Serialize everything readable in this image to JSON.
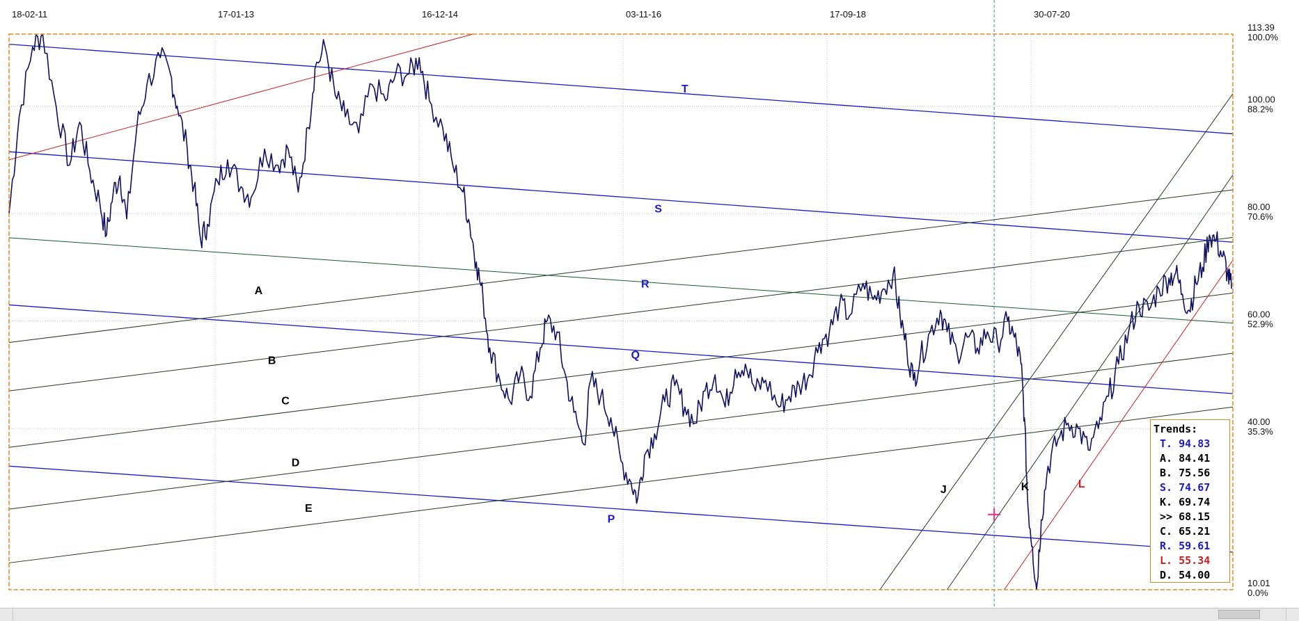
{
  "chart_data": {
    "type": "line",
    "dates": [
      "18-02-11",
      "17-01-13",
      "16-12-14",
      "03-11-16",
      "17-09-18",
      "30-07-20"
    ],
    "price_levels": [
      {
        "value": "113.39",
        "pct": "100.0%"
      },
      {
        "value": "100.00",
        "pct": "88.2%"
      },
      {
        "value": "80.00",
        "pct": "70.6%"
      },
      {
        "value": "60.00",
        "pct": "52.9%"
      },
      {
        "value": "40.00",
        "pct": "35.3%"
      },
      {
        "value": "10.01",
        "pct": "0.0%"
      }
    ],
    "ylim": [
      10.01,
      113.39
    ],
    "price_series": [
      {
        "x": 0,
        "y": 80
      },
      {
        "x": 0.15,
        "y": 98
      },
      {
        "x": 0.35,
        "y": 111
      },
      {
        "x": 0.5,
        "y": 113.39
      },
      {
        "x": 0.7,
        "y": 100
      },
      {
        "x": 0.9,
        "y": 89
      },
      {
        "x": 1.05,
        "y": 97
      },
      {
        "x": 1.2,
        "y": 88
      },
      {
        "x": 1.35,
        "y": 82
      },
      {
        "x": 1.45,
        "y": 76
      },
      {
        "x": 1.55,
        "y": 84
      },
      {
        "x": 1.65,
        "y": 87
      },
      {
        "x": 1.75,
        "y": 79
      },
      {
        "x": 1.9,
        "y": 96
      },
      {
        "x": 2.05,
        "y": 104
      },
      {
        "x": 2.25,
        "y": 109
      },
      {
        "x": 2.4,
        "y": 106
      },
      {
        "x": 2.5,
        "y": 100
      },
      {
        "x": 2.65,
        "y": 92
      },
      {
        "x": 2.75,
        "y": 85
      },
      {
        "x": 2.85,
        "y": 75
      },
      {
        "x": 2.95,
        "y": 78
      },
      {
        "x": 3.1,
        "y": 86
      },
      {
        "x": 3.25,
        "y": 90
      },
      {
        "x": 3.45,
        "y": 85
      },
      {
        "x": 3.6,
        "y": 83
      },
      {
        "x": 3.8,
        "y": 92
      },
      {
        "x": 4.0,
        "y": 89
      },
      {
        "x": 4.15,
        "y": 92
      },
      {
        "x": 4.3,
        "y": 84
      },
      {
        "x": 4.45,
        "y": 96
      },
      {
        "x": 4.55,
        "y": 107
      },
      {
        "x": 4.7,
        "y": 111
      },
      {
        "x": 4.85,
        "y": 102
      },
      {
        "x": 5.0,
        "y": 98
      },
      {
        "x": 5.2,
        "y": 95
      },
      {
        "x": 5.4,
        "y": 104
      },
      {
        "x": 5.6,
        "y": 101
      },
      {
        "x": 5.75,
        "y": 106
      },
      {
        "x": 5.95,
        "y": 106
      },
      {
        "x": 6.1,
        "y": 109
      },
      {
        "x": 6.25,
        "y": 101
      },
      {
        "x": 6.45,
        "y": 96
      },
      {
        "x": 6.6,
        "y": 89
      },
      {
        "x": 6.75,
        "y": 84
      },
      {
        "x": 6.85,
        "y": 78
      },
      {
        "x": 6.95,
        "y": 71
      },
      {
        "x": 7.05,
        "y": 64
      },
      {
        "x": 7.15,
        "y": 55
      },
      {
        "x": 7.3,
        "y": 49
      },
      {
        "x": 7.45,
        "y": 45
      },
      {
        "x": 7.6,
        "y": 50
      },
      {
        "x": 7.75,
        "y": 46
      },
      {
        "x": 7.9,
        "y": 55
      },
      {
        "x": 8.0,
        "y": 60
      },
      {
        "x": 8.15,
        "y": 58
      },
      {
        "x": 8.25,
        "y": 51
      },
      {
        "x": 8.4,
        "y": 43
      },
      {
        "x": 8.55,
        "y": 37
      },
      {
        "x": 8.65,
        "y": 49
      },
      {
        "x": 8.8,
        "y": 46
      },
      {
        "x": 8.95,
        "y": 42
      },
      {
        "x": 9.1,
        "y": 34
      },
      {
        "x": 9.25,
        "y": 30
      },
      {
        "x": 9.35,
        "y": 27
      },
      {
        "x": 9.45,
        "y": 35
      },
      {
        "x": 9.6,
        "y": 39
      },
      {
        "x": 9.75,
        "y": 45
      },
      {
        "x": 9.9,
        "y": 48
      },
      {
        "x": 10.05,
        "y": 44
      },
      {
        "x": 10.2,
        "y": 41
      },
      {
        "x": 10.35,
        "y": 47
      },
      {
        "x": 10.5,
        "y": 50
      },
      {
        "x": 10.65,
        "y": 44
      },
      {
        "x": 10.8,
        "y": 51
      },
      {
        "x": 10.95,
        "y": 52
      },
      {
        "x": 11.1,
        "y": 47
      },
      {
        "x": 11.25,
        "y": 49
      },
      {
        "x": 11.45,
        "y": 44
      },
      {
        "x": 11.6,
        "y": 46
      },
      {
        "x": 11.75,
        "y": 48
      },
      {
        "x": 11.9,
        "y": 50
      },
      {
        "x": 12.05,
        "y": 56
      },
      {
        "x": 12.2,
        "y": 58
      },
      {
        "x": 12.35,
        "y": 63
      },
      {
        "x": 12.5,
        "y": 61
      },
      {
        "x": 12.7,
        "y": 67
      },
      {
        "x": 12.85,
        "y": 64
      },
      {
        "x": 13.0,
        "y": 66
      },
      {
        "x": 13.15,
        "y": 69
      },
      {
        "x": 13.25,
        "y": 61
      },
      {
        "x": 13.35,
        "y": 55
      },
      {
        "x": 13.45,
        "y": 49
      },
      {
        "x": 13.55,
        "y": 53
      },
      {
        "x": 13.7,
        "y": 58
      },
      {
        "x": 13.85,
        "y": 62
      },
      {
        "x": 13.95,
        "y": 58
      },
      {
        "x": 14.1,
        "y": 54
      },
      {
        "x": 14.25,
        "y": 57
      },
      {
        "x": 14.4,
        "y": 55
      },
      {
        "x": 14.55,
        "y": 58
      },
      {
        "x": 14.7,
        "y": 56
      },
      {
        "x": 14.85,
        "y": 60
      },
      {
        "x": 14.95,
        "y": 57
      },
      {
        "x": 15.05,
        "y": 52
      },
      {
        "x": 15.1,
        "y": 42
      },
      {
        "x": 15.15,
        "y": 26
      },
      {
        "x": 15.22,
        "y": 18
      },
      {
        "x": 15.28,
        "y": 10.01
      },
      {
        "x": 15.35,
        "y": 23
      },
      {
        "x": 15.45,
        "y": 33
      },
      {
        "x": 15.6,
        "y": 38
      },
      {
        "x": 15.75,
        "y": 41
      },
      {
        "x": 15.9,
        "y": 40
      },
      {
        "x": 16.05,
        "y": 36
      },
      {
        "x": 16.2,
        "y": 40
      },
      {
        "x": 16.35,
        "y": 46
      },
      {
        "x": 16.5,
        "y": 52
      },
      {
        "x": 16.65,
        "y": 58
      },
      {
        "x": 16.8,
        "y": 63
      },
      {
        "x": 16.95,
        "y": 62
      },
      {
        "x": 17.1,
        "y": 66
      },
      {
        "x": 17.25,
        "y": 68
      },
      {
        "x": 17.35,
        "y": 69
      },
      {
        "x": 17.45,
        "y": 65
      },
      {
        "x": 17.55,
        "y": 62
      },
      {
        "x": 17.65,
        "y": 67
      },
      {
        "x": 17.75,
        "y": 70
      },
      {
        "x": 17.85,
        "y": 76
      },
      {
        "x": 17.95,
        "y": 75
      },
      {
        "x": 18.05,
        "y": 72
      },
      {
        "x": 18.12,
        "y": 69
      },
      {
        "x": 18.18,
        "y": 66
      }
    ],
    "x_domain": [
      0,
      18.2
    ],
    "trend_lines": [
      {
        "name": "T",
        "color": "#1a1ac8",
        "label_color": "#1a1ac8",
        "p1": [
          0,
          111.5
        ],
        "p2": [
          18.2,
          94.83
        ],
        "label_at": [
          10,
          102.5
        ]
      },
      {
        "name": "S",
        "color": "#1a1ac8",
        "label_color": "#1a1ac8",
        "p1": [
          0,
          91.5
        ],
        "p2": [
          18.2,
          74.67
        ],
        "label_at": [
          9.6,
          80.2
        ]
      },
      {
        "name": "R",
        "color": "#1a5a2a",
        "label_color": "#1a1ac8",
        "p1": [
          0,
          75.5
        ],
        "p2": [
          18.2,
          59.61
        ],
        "label_at": [
          9.4,
          66.2
        ]
      },
      {
        "name": "Q",
        "color": "#1a1ac8",
        "label_color": "#1a1ac8",
        "p1": [
          0,
          63
        ],
        "p2": [
          18.2,
          46.5
        ],
        "label_at": [
          9.25,
          53
        ]
      },
      {
        "name": "P",
        "color": "#1a1ac8",
        "label_color": "#1a1ac8",
        "p1": [
          0,
          33
        ],
        "p2": [
          18.2,
          17
        ],
        "label_at": [
          8.9,
          22.5
        ]
      },
      {
        "name": "A",
        "color": "#1f3a1f",
        "label_color": "#000000",
        "p1": [
          0,
          56
        ],
        "p2": [
          18.2,
          84.41
        ],
        "label_at": [
          3.65,
          65
        ]
      },
      {
        "name": "B",
        "color": "#1f3a1f",
        "label_color": "#000000",
        "p1": [
          0,
          47
        ],
        "p2": [
          18.2,
          75.56
        ],
        "label_at": [
          3.85,
          52
        ]
      },
      {
        "name": "C",
        "color": "#1f3a1f",
        "label_color": "#000000",
        "p1": [
          0,
          36.5
        ],
        "p2": [
          18.2,
          65.21
        ],
        "label_at": [
          4.05,
          44.5
        ]
      },
      {
        "name": "D",
        "color": "#1f3a1f",
        "label_color": "#000000",
        "p1": [
          0,
          25
        ],
        "p2": [
          18.2,
          54.0
        ],
        "label_at": [
          4.2,
          33
        ]
      },
      {
        "name": "E",
        "color": "#1f3a1f",
        "label_color": "#000000",
        "p1": [
          0,
          15
        ],
        "p2": [
          18.2,
          44
        ],
        "label_at": [
          4.4,
          24.5
        ]
      },
      {
        "name": "J",
        "color": "#1f3a1f",
        "label_color": "#000000",
        "p1": [
          12.95,
          10.01
        ],
        "p2": [
          18.2,
          102.3
        ],
        "label_at": [
          13.85,
          28
        ]
      },
      {
        "name": "K",
        "color": "#1f3a1f",
        "label_color": "#000000",
        "p1": [
          13.95,
          10.01
        ],
        "p2": [
          18.2,
          87.2
        ],
        "label_at": [
          15.05,
          28.5
        ]
      },
      {
        "name": "L",
        "color": "#c82020",
        "label_color": "#c82020",
        "p1": [
          14.8,
          10.01
        ],
        "p2": [
          18.2,
          71.3
        ],
        "label_at": [
          15.9,
          29
        ]
      },
      {
        "name": "",
        "color": "#c82020",
        "label_color": "#c82020",
        "p1": [
          0,
          90
        ],
        "p2": [
          6.9,
          113.39
        ],
        "label_at": null
      }
    ],
    "marker": {
      "x": 14.65,
      "y": 24,
      "color": "#ff2a80"
    },
    "cursor_x": 14.65,
    "trends_legend": {
      "title": "Trends:",
      "items": [
        {
          "label": "T.",
          "value": "94.83",
          "color": "#1a1ac8"
        },
        {
          "label": "A.",
          "value": "84.41",
          "color": "#000000"
        },
        {
          "label": "B.",
          "value": "75.56",
          "color": "#000000"
        },
        {
          "label": "S.",
          "value": "74.67",
          "color": "#1a1ac8"
        },
        {
          "label": "K.",
          "value": "69.74",
          "color": "#000000"
        },
        {
          "label": ">>",
          "value": "68.15",
          "color": "#000000"
        },
        {
          "label": "C.",
          "value": "65.21",
          "color": "#000000"
        },
        {
          "label": "R.",
          "value": "59.61",
          "color": "#1a1ac8"
        },
        {
          "label": "L.",
          "value": "55.34",
          "color": "#c82020"
        },
        {
          "label": "D.",
          "value": "54.00",
          "color": "#000000"
        }
      ]
    },
    "colors": {
      "price": "#101060",
      "frame": "#e08a1a",
      "grid": "#c8c8c8",
      "cursor": "#2a8ad8"
    }
  }
}
